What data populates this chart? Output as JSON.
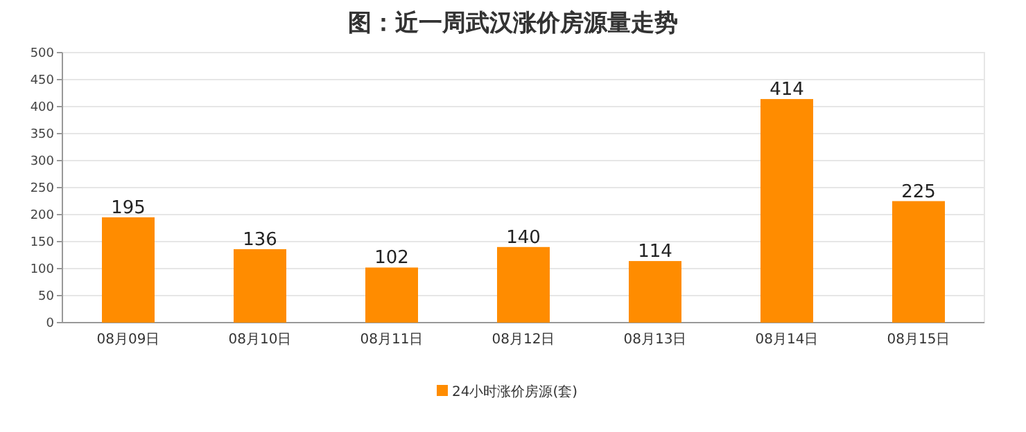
{
  "chart_data": {
    "type": "bar",
    "title": "图：近一周武汉涨价房源量走势",
    "categories": [
      "08月09日",
      "08月10日",
      "08月11日",
      "08月12日",
      "08月13日",
      "08月14日",
      "08月15日"
    ],
    "series": [
      {
        "name": "24小时涨价房源(套)",
        "color": "#ff8c00",
        "values": [
          195,
          136,
          102,
          140,
          114,
          414,
          225
        ]
      }
    ],
    "ylim": [
      0,
      500
    ],
    "yticks": [
      0,
      50,
      100,
      150,
      200,
      250,
      300,
      350,
      400,
      450,
      500
    ],
    "grid": "y",
    "legend": "bottom",
    "data_labels": true
  }
}
